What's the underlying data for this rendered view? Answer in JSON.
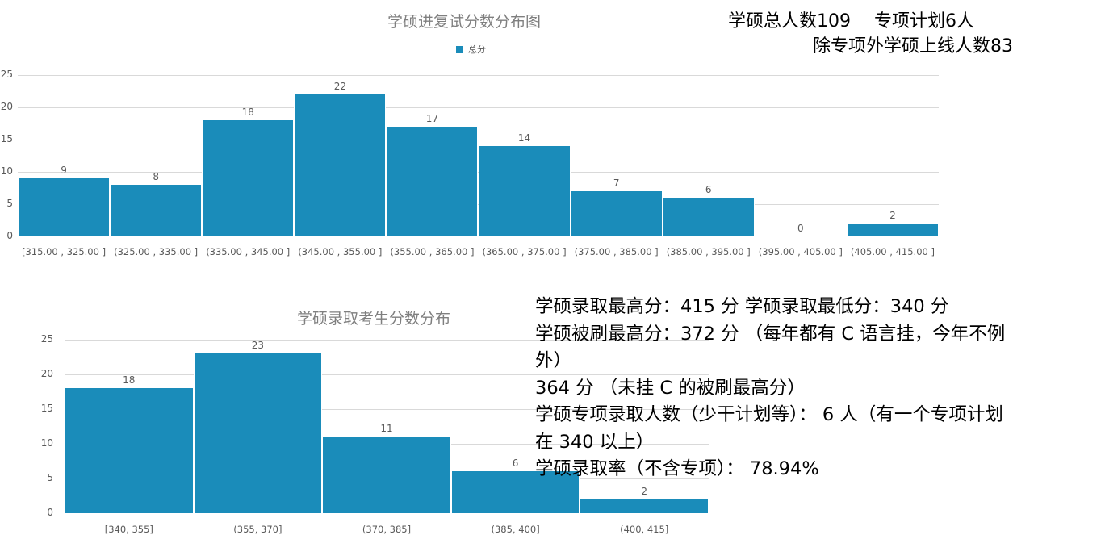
{
  "chart_data": [
    {
      "type": "bar",
      "title": "学硕进复试分数分布图",
      "legend": [
        "总分"
      ],
      "legend_position": "top",
      "categories": [
        "[315.00 , 325.00 ]",
        "(325.00 , 335.00 ]",
        "(335.00 , 345.00 ]",
        "(345.00 , 355.00 ]",
        "(355.00 , 365.00 ]",
        "(365.00 , 375.00 ]",
        "(375.00 , 385.00 ]",
        "(385.00 , 395.00 ]",
        "(395.00 , 405.00 ]",
        "(405.00 , 415.00 ]"
      ],
      "values": [
        9,
        8,
        18,
        22,
        17,
        14,
        7,
        6,
        0,
        2
      ],
      "series": [
        {
          "name": "总分",
          "values": [
            9,
            8,
            18,
            22,
            17,
            14,
            7,
            6,
            0,
            2
          ]
        }
      ],
      "xlabel": "",
      "ylabel": "",
      "ylim": [
        0,
        25
      ],
      "yticks": [
        0,
        5,
        10,
        15,
        20,
        25
      ],
      "grid": true,
      "color": "#1a8cba"
    },
    {
      "type": "bar",
      "title": "学硕录取考生分数分布",
      "legend": [],
      "categories": [
        "[340, 355]",
        "(355, 370]",
        "(370, 385]",
        "(385, 400]",
        "(400, 415]"
      ],
      "values": [
        18,
        23,
        11,
        6,
        2
      ],
      "series": [
        {
          "name": "",
          "values": [
            18,
            23,
            11,
            6,
            2
          ]
        }
      ],
      "xlabel": "",
      "ylabel": "",
      "ylim": [
        0,
        25
      ],
      "yticks": [
        0,
        5,
        10,
        15,
        20,
        25
      ],
      "grid": true,
      "color": "#1a8cba"
    }
  ],
  "chart1": {
    "title": "学硕进复试分数分布图",
    "legend_label": "总分",
    "yticks": [
      "0",
      "5",
      "10",
      "15",
      "20",
      "25"
    ],
    "bars": [
      {
        "label": "[315.00 , 325.00 ]",
        "value": 9,
        "value_text": "9"
      },
      {
        "label": "(325.00 , 335.00 ]",
        "value": 8,
        "value_text": "8"
      },
      {
        "label": "(335.00 , 345.00 ]",
        "value": 18,
        "value_text": "18"
      },
      {
        "label": "(345.00 , 355.00 ]",
        "value": 22,
        "value_text": "22"
      },
      {
        "label": "(355.00 , 365.00 ]",
        "value": 17,
        "value_text": "17"
      },
      {
        "label": "(365.00 , 375.00 ]",
        "value": 14,
        "value_text": "14"
      },
      {
        "label": "(375.00 , 385.00 ]",
        "value": 7,
        "value_text": "7"
      },
      {
        "label": "(385.00 , 395.00 ]",
        "value": 6,
        "value_text": "6"
      },
      {
        "label": "(395.00 , 405.00 ]",
        "value": 0,
        "value_text": "0"
      },
      {
        "label": "(405.00 , 415.00 ]",
        "value": 2,
        "value_text": "2"
      }
    ]
  },
  "chart2": {
    "title": "学硕录取考生分数分布",
    "yticks": [
      "0",
      "5",
      "10",
      "15",
      "20",
      "25"
    ],
    "bars": [
      {
        "label": "[340, 355]",
        "value": 18,
        "value_text": "18"
      },
      {
        "label": "(355, 370]",
        "value": 23,
        "value_text": "23"
      },
      {
        "label": "(370, 385]",
        "value": 11,
        "value_text": "11"
      },
      {
        "label": "(385, 400]",
        "value": 6,
        "value_text": "6"
      },
      {
        "label": "(400, 415]",
        "value": 2,
        "value_text": "2"
      }
    ]
  },
  "summary": {
    "line1": "学硕总人数109　 专项计划6人",
    "line2": "除专项外学硕上线人数83"
  },
  "notes": {
    "line1": "学硕录取最高分：415 分 学硕录取最低分：340 分",
    "line2": "学硕被刷最高分：372  分  （每年都有 C 语言挂，今年不例",
    "line3": "外）",
    "line4": "364  分  （未挂 C 的被刷最高分）",
    "line5": "学硕专项录取人数（少干计划等）：  6 人（有一个专项计划",
    "line6": "在 340 以上）",
    "line7": "学硕录取率（不含专项）：  78.94%"
  },
  "colors": {
    "bar": "#1a8cba",
    "grid": "#d9d9d9",
    "axis_text": "#595959",
    "title": "#7f7f7f"
  }
}
